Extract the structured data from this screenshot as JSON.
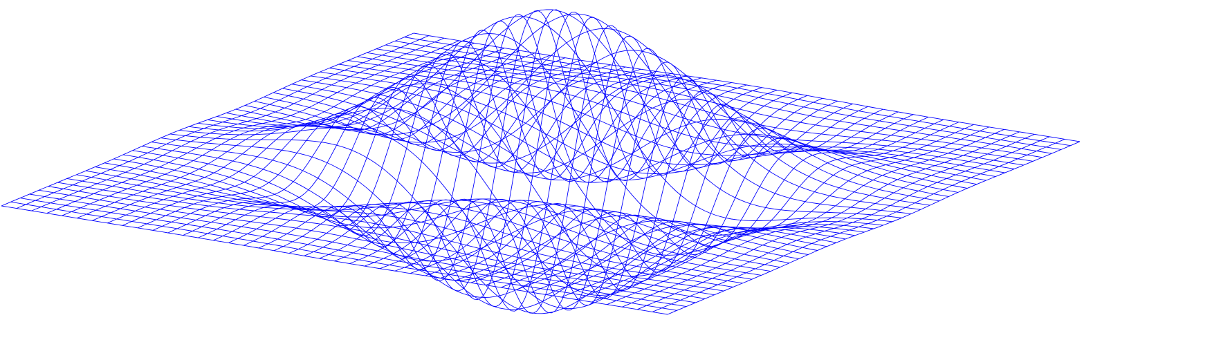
{
  "surface": {
    "color": "#0000ff"
  }
}
